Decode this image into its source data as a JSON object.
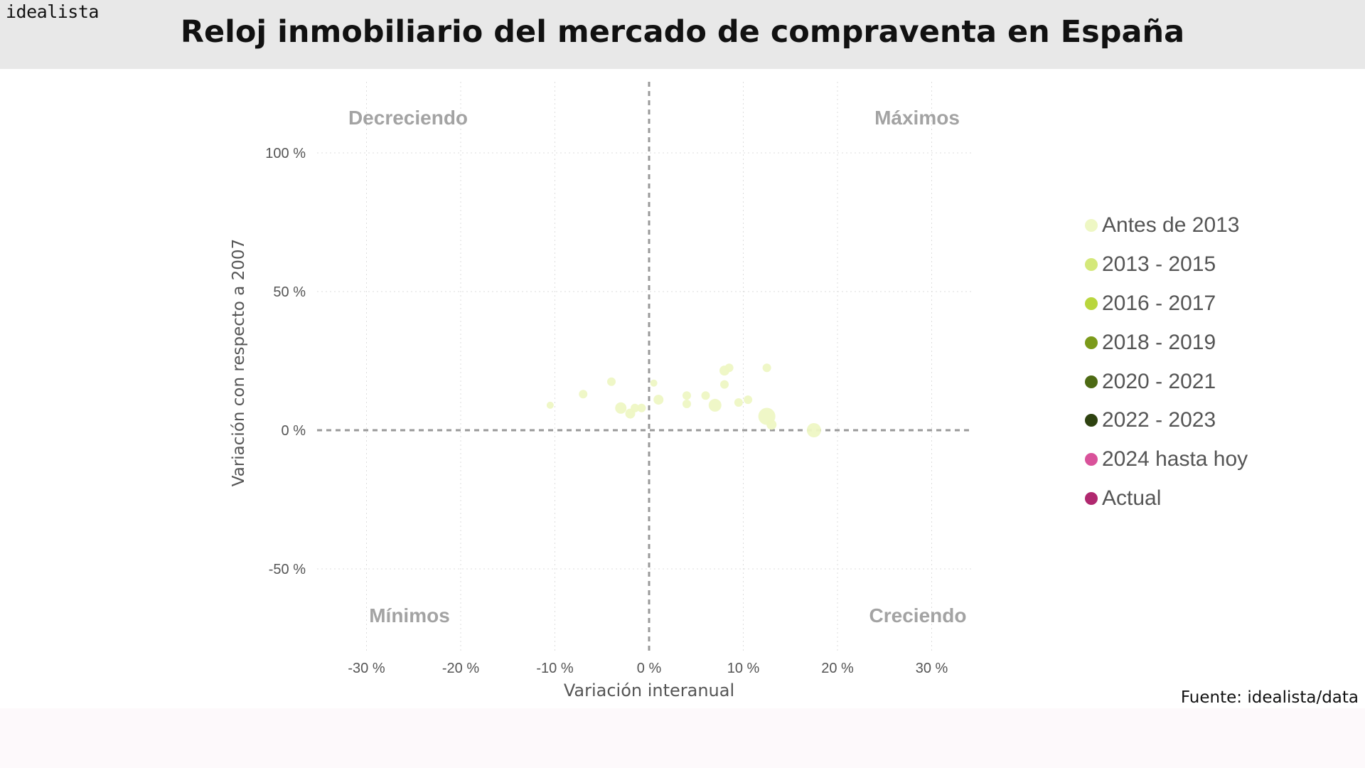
{
  "brand": "idealista",
  "title": "Reloj inmobiliario del mercado de compraventa en España",
  "source": "Fuente: idealista/data",
  "chart_data": {
    "type": "scatter",
    "xlabel": "Variación interanual",
    "ylabel": "Variación con respecto a 2007",
    "xlim": [
      -35,
      35
    ],
    "ylim": [
      -75,
      125
    ],
    "x_ticks": [
      -30,
      -20,
      -10,
      0,
      10,
      20,
      30
    ],
    "y_ticks": [
      -50,
      0,
      50,
      100
    ],
    "x_tick_labels": [
      "-30 %",
      "-20 %",
      "-10 %",
      "0 %",
      "10 %",
      "20 %",
      "30 %"
    ],
    "y_tick_labels": [
      "-50 %",
      "0 %",
      "50 %",
      "100 %"
    ],
    "grid": true,
    "quadrants": {
      "top_left": "Decreciendo",
      "top_right": "Máximos",
      "bottom_left": "Mínimos",
      "bottom_right": "Creciendo"
    },
    "legend": [
      {
        "label": "Antes de 2013",
        "color": "#eef7c4"
      },
      {
        "label": "2013 - 2015",
        "color": "#d4e87a"
      },
      {
        "label": "2016 - 2017",
        "color": "#b9d63d"
      },
      {
        "label": "2018 - 2019",
        "color": "#7b9a1a"
      },
      {
        "label": "2020 - 2021",
        "color": "#4d6a14"
      },
      {
        "label": "2022 - 2023",
        "color": "#2e4210"
      },
      {
        "label": "2024 hasta hoy",
        "color": "#d9529a"
      },
      {
        "label": "Actual",
        "color": "#b0286f"
      }
    ],
    "series": [
      {
        "name": "Antes de 2013",
        "color": "#eef7c4",
        "points": [
          {
            "x": -10.5,
            "y": 9,
            "size": 5
          },
          {
            "x": -7.0,
            "y": 13,
            "size": 6
          },
          {
            "x": -4.0,
            "y": 17.5,
            "size": 6
          },
          {
            "x": -3.0,
            "y": 8,
            "size": 8
          },
          {
            "x": -2.0,
            "y": 6,
            "size": 7
          },
          {
            "x": -1.5,
            "y": 8,
            "size": 6
          },
          {
            "x": -0.8,
            "y": 8,
            "size": 6
          },
          {
            "x": 0.5,
            "y": 17,
            "size": 5
          },
          {
            "x": 1.0,
            "y": 11,
            "size": 7
          },
          {
            "x": 4.0,
            "y": 12.5,
            "size": 6
          },
          {
            "x": 4.0,
            "y": 9.5,
            "size": 6
          },
          {
            "x": 6.0,
            "y": 12.5,
            "size": 6
          },
          {
            "x": 7.0,
            "y": 9,
            "size": 9
          },
          {
            "x": 8.0,
            "y": 16.5,
            "size": 6
          },
          {
            "x": 8.0,
            "y": 21.5,
            "size": 7
          },
          {
            "x": 8.5,
            "y": 22.5,
            "size": 6
          },
          {
            "x": 9.5,
            "y": 10,
            "size": 6
          },
          {
            "x": 10.5,
            "y": 11,
            "size": 6
          },
          {
            "x": 12.5,
            "y": 22.5,
            "size": 6
          },
          {
            "x": 12.5,
            "y": 5,
            "size": 12
          },
          {
            "x": 13.0,
            "y": 2,
            "size": 7
          },
          {
            "x": 17.5,
            "y": 0,
            "size": 10
          }
        ]
      }
    ]
  }
}
